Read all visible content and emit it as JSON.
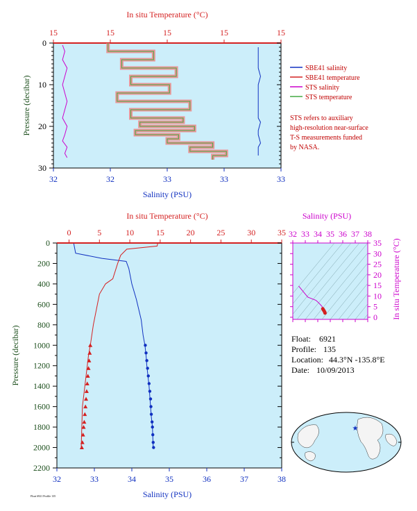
{
  "colors": {
    "background": "#cceefa",
    "temperature": "#d42020",
    "salinity": "#1030c0",
    "sts_salinity": "#cc00cc",
    "sts_temperature": "#44aa44",
    "sts_temperature_shade": "#f08080",
    "pressure_axis": "#1a4d1a",
    "ts_axes": "#cc00cc"
  },
  "top_panel": {
    "temp_title": "In situ Temperature (°C)",
    "temp_ticks": [
      "15",
      "15",
      "15",
      "15",
      "15"
    ],
    "pressure_label": "Pressure (decibar)",
    "pressure_ticks": [
      "0",
      "10",
      "20",
      "30"
    ],
    "salinity_label": "Salinity (PSU)",
    "salinity_ticks": [
      "32",
      "32",
      "33",
      "33",
      "33"
    ],
    "legend": [
      {
        "label": "SBE41 salinity",
        "color": "#1030c0"
      },
      {
        "label": "SBE41 temperature",
        "color": "#d42020"
      },
      {
        "label": "STS salinity",
        "color": "#cc00cc"
      },
      {
        "label": "STS temperature",
        "color": "#44aa44"
      }
    ],
    "note": [
      "STS refers to auxiliary",
      "high-resolution near-surface",
      "T-S measurements funded",
      "by NASA."
    ]
  },
  "bottom_panel": {
    "temp_title": "In situ Temperature (°C)",
    "temp_ticks": [
      "0",
      "5",
      "10",
      "15",
      "20",
      "25",
      "30",
      "35"
    ],
    "pressure_label": "Pressure (decibar)",
    "pressure_ticks": [
      "0",
      "200",
      "400",
      "600",
      "800",
      "1000",
      "1200",
      "1400",
      "1600",
      "1800",
      "2000",
      "2200"
    ],
    "salinity_label": "Salinity (PSU)",
    "salinity_ticks": [
      "32",
      "33",
      "34",
      "35",
      "36",
      "37",
      "38"
    ],
    "credit": "Float 6921  Profile 135"
  },
  "ts_panel": {
    "salinity_title": "Salinity (PSU)",
    "salinity_ticks": [
      "32",
      "33",
      "34",
      "35",
      "36",
      "37",
      "38"
    ],
    "temp_label": "In situ Temperature (°C)",
    "temp_ticks": [
      "35",
      "30",
      "25",
      "20",
      "15",
      "10",
      "5",
      "0"
    ]
  },
  "info": {
    "float_label": "Float:",
    "float_value": "6921",
    "profile_label": "Profile:",
    "profile_value": "135",
    "location_label": "Location:",
    "location_value": "44.3°N  -135.8°E",
    "date_label": "Date:",
    "date_value": "10/09/2013"
  },
  "chart_data": [
    {
      "type": "line",
      "title": "",
      "x_top_label": "In situ Temperature (°C)",
      "x_bottom_label": "Salinity (PSU)",
      "ylabel": "Pressure (decibar)",
      "ylim": [
        30,
        0
      ],
      "salinity_xlim": [
        32,
        33
      ],
      "series": [
        {
          "name": "SBE41 salinity",
          "color": "#1030c0",
          "x": [
            32.9,
            32.9,
            32.9,
            32.9,
            32.91,
            32.9,
            32.9,
            32.9,
            32.9,
            32.9,
            32.91,
            32.9,
            32.9,
            32.91,
            32.9,
            32.9,
            32.9
          ],
          "y": [
            1,
            3,
            5,
            6,
            8,
            10,
            12,
            14,
            16,
            18,
            19,
            21,
            22,
            24,
            25,
            26,
            27
          ]
        },
        {
          "name": "STS salinity",
          "color": "#cc00cc",
          "x": [
            32.04,
            32.05,
            32.04,
            32.06,
            32.05,
            32.04,
            32.05,
            32.06,
            32.05,
            32.04,
            32.06,
            32.05,
            32.04,
            32.06,
            32.05,
            32.06
          ],
          "y": [
            0.5,
            2,
            4,
            6,
            8,
            10,
            12,
            14,
            16,
            18,
            20,
            22,
            23.5,
            25,
            26.5,
            27.5
          ]
        },
        {
          "name": "STS temperature",
          "color": "#44aa44",
          "x": [
            0.24,
            0.44,
            0.3,
            0.54,
            0.34,
            0.51,
            0.28,
            0.6,
            0.34,
            0.57,
            0.38,
            0.62,
            0.36,
            0.55,
            0.5,
            0.7,
            0.6,
            0.76,
            0.7
          ],
          "y": [
            0,
            2,
            4,
            6,
            8,
            10,
            12,
            14,
            16,
            18,
            19,
            20,
            21,
            22,
            23,
            24,
            25,
            26,
            27
          ]
        }
      ]
    },
    {
      "type": "line",
      "title": "",
      "x_top_label": "In situ Temperature (°C)",
      "x_bottom_label": "Salinity (PSU)",
      "ylabel": "Pressure (decibar)",
      "ylim": [
        2200,
        0
      ],
      "temp_xlim": [
        -2,
        35
      ],
      "salinity_xlim": [
        32,
        38
      ],
      "series": [
        {
          "name": "Salinity",
          "color": "#1030c0",
          "x": [
            32.45,
            32.5,
            33.2,
            33.85,
            33.92,
            34.0,
            34.12,
            34.25,
            34.3,
            34.35,
            34.38,
            34.4,
            34.43,
            34.46,
            34.48,
            34.5,
            34.52,
            34.55,
            34.57
          ],
          "y": [
            5,
            100,
            150,
            180,
            250,
            400,
            550,
            750,
            900,
            1000,
            1100,
            1200,
            1300,
            1400,
            1500,
            1600,
            1700,
            1800,
            2000
          ]
        },
        {
          "name": "Temperature",
          "color": "#d42020",
          "x": [
            14.6,
            14.5,
            9.5,
            8.5,
            8.0,
            7.2,
            6.0,
            5.0,
            4.5,
            4.0,
            3.5,
            3.2,
            3.0,
            2.8,
            2.6,
            2.4,
            2.2,
            2.1,
            2.0
          ],
          "y": [
            0,
            30,
            60,
            120,
            200,
            350,
            400,
            500,
            650,
            800,
            1000,
            1100,
            1200,
            1300,
            1400,
            1500,
            1600,
            1800,
            2000
          ]
        },
        {
          "name": "Salinity deep samples",
          "color": "#1030c0",
          "marker": "dot",
          "x": [
            34.36,
            34.38,
            34.4,
            34.42,
            34.44,
            34.46,
            34.48,
            34.5,
            34.51,
            34.52,
            34.54,
            34.55,
            34.56,
            34.57,
            34.58
          ],
          "y": [
            1000,
            1075,
            1150,
            1225,
            1300,
            1375,
            1450,
            1525,
            1600,
            1675,
            1750,
            1800,
            1875,
            1950,
            2000
          ]
        },
        {
          "name": "Temperature deep samples",
          "color": "#d42020",
          "marker": "triangle",
          "x": [
            3.5,
            3.4,
            3.3,
            3.2,
            3.1,
            3.0,
            2.9,
            2.8,
            2.7,
            2.6,
            2.5,
            2.4,
            2.3,
            2.2,
            2.1
          ],
          "y": [
            1000,
            1075,
            1150,
            1225,
            1300,
            1375,
            1450,
            1525,
            1600,
            1675,
            1750,
            1800,
            1875,
            1950,
            2000
          ]
        }
      ]
    },
    {
      "type": "scatter",
      "title": "",
      "x_label": "Salinity (PSU)",
      "y_label": "In situ Temperature (°C)",
      "xlim": [
        32,
        38
      ],
      "ylim": [
        -1,
        35
      ],
      "series": [
        {
          "name": "T-S curve",
          "color": "#cc00cc",
          "x": [
            32.45,
            32.5,
            33.2,
            33.85,
            34.0,
            34.2,
            34.35,
            34.4,
            34.45,
            34.5,
            34.55,
            34.58
          ],
          "y": [
            14.6,
            14.5,
            9.5,
            8.0,
            7.2,
            6.0,
            5.0,
            4.0,
            3.5,
            3.0,
            2.5,
            2.0
          ]
        }
      ]
    }
  ]
}
